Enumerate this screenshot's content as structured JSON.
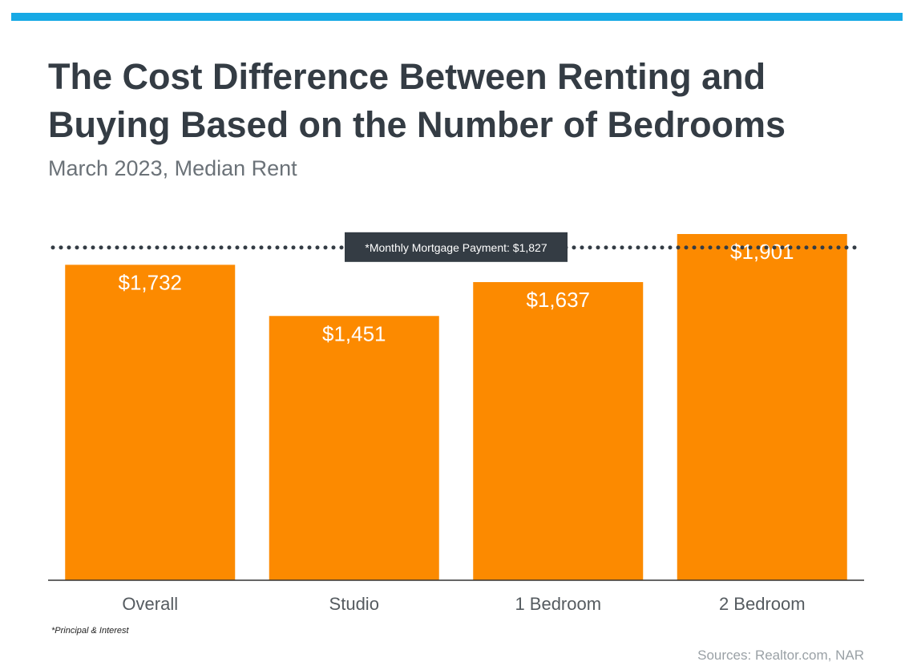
{
  "title": "The Cost Difference Between Renting and Buying Based on the Number of Bedrooms",
  "subtitle": "March 2023, Median Rent",
  "footnote": "*Principal & Interest",
  "source": "Sources: Realtor.com, NAR",
  "colors": {
    "bar": "#fc8a00",
    "accent_bar": "#17a9e5",
    "title": "#343c44",
    "reference_box": "#343c44"
  },
  "chart_data": {
    "type": "bar",
    "title": "The Cost Difference Between Renting and Buying Based on the Number of Bedrooms",
    "subtitle": "March 2023, Median Rent",
    "categories": [
      "Overall",
      "Studio",
      "1 Bedroom",
      "2 Bedroom"
    ],
    "values": [
      1732,
      1451,
      1637,
      1901
    ],
    "value_labels": [
      "$1,732",
      "$1,451",
      "$1,637",
      "$1,901"
    ],
    "xlabel": "",
    "ylabel": "",
    "ylim": [
      0,
      1901
    ],
    "grid": false,
    "reference_line": {
      "value": 1827,
      "label": "*Monthly Mortgage Payment: $1,827",
      "style": "dotted"
    }
  }
}
